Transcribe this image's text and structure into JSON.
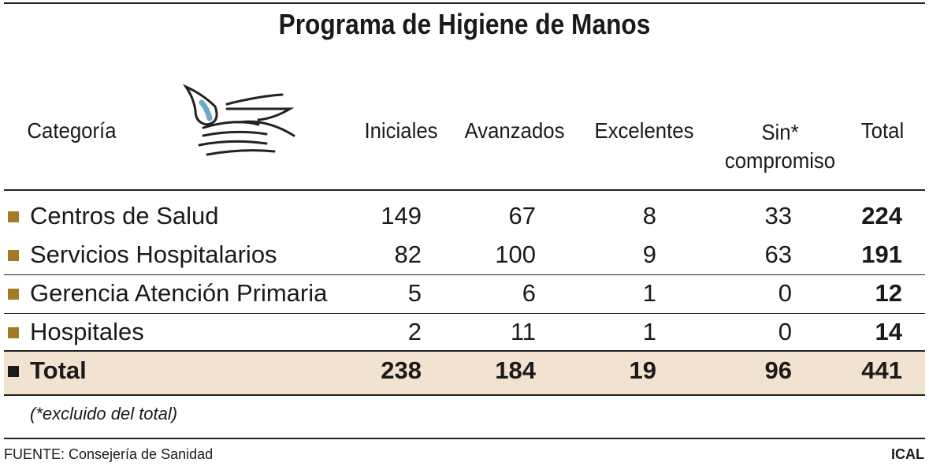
{
  "title": "Programa de Higiene de Manos",
  "table": {
    "header": [
      "Categoría",
      "Iniciales",
      "Avanzados",
      "Excelentes",
      "Sin* compromiso",
      "Total"
    ],
    "rows": [
      [
        "Centros de Salud",
        149,
        67,
        8,
        33,
        224
      ],
      [
        "Servicios Hospitalarios",
        82,
        100,
        9,
        63,
        191
      ],
      [
        "Gerencia Atención Primaria",
        5,
        6,
        1,
        0,
        12
      ],
      [
        "Hospitales",
        2,
        11,
        1,
        0,
        14
      ]
    ],
    "total_row": [
      "Total",
      238,
      184,
      19,
      96,
      441
    ]
  },
  "note": "(*excluido del total)",
  "source": "FUENTE: Consejería de Sanidad",
  "credit": "ICAL"
}
